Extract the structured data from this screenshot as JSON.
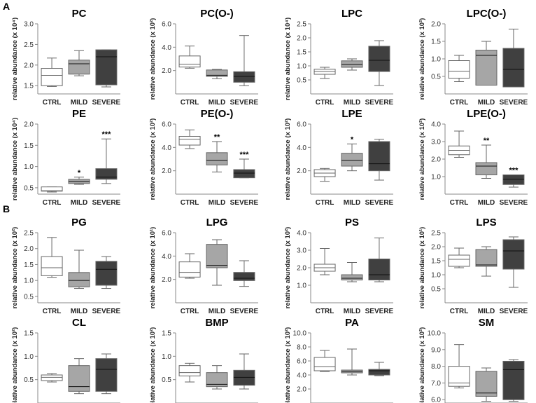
{
  "sections": {
    "a": "A",
    "b": "B"
  },
  "colors": {
    "CTRL": "#ffffff",
    "MILD": "#a6a6a6",
    "SEVERE": "#404040",
    "edge": "#666666",
    "axis": "#888888"
  },
  "chart_data": [
    {
      "type": "box",
      "title": "PC",
      "ylabel": "relative abundance (x 10⁴)",
      "categories": [
        "CTRL",
        "MILD",
        "SEVERE"
      ],
      "ylim": [
        1.3,
        3.0
      ],
      "yticks": [
        "1.5",
        "2.0",
        "2.5",
        "3.0"
      ],
      "boxes": [
        {
          "min": 1.48,
          "q1": 1.5,
          "median": 1.75,
          "q3": 1.92,
          "max": 2.17
        },
        {
          "min": 1.74,
          "q1": 1.78,
          "median": 2.03,
          "q3": 2.12,
          "max": 2.35
        },
        {
          "min": 1.47,
          "q1": 1.52,
          "median": 2.2,
          "q3": 2.37,
          "max": 2.37
        }
      ],
      "significance": [
        "",
        "",
        ""
      ]
    },
    {
      "type": "box",
      "title": "PC(O-)",
      "ylabel": "relative abundance (x 10²)",
      "categories": [
        "CTRL",
        "MILD",
        "SEVERE"
      ],
      "ylim": [
        0,
        6.0
      ],
      "yticks": [
        "2.0",
        "4.0",
        "6.0"
      ],
      "boxes": [
        {
          "min": 2.2,
          "q1": 2.3,
          "median": 2.55,
          "q3": 3.25,
          "max": 4.1
        },
        {
          "min": 1.3,
          "q1": 1.5,
          "median": 1.6,
          "q3": 2.05,
          "max": 2.1
        },
        {
          "min": 0.7,
          "q1": 1.0,
          "median": 1.5,
          "q3": 1.9,
          "max": 5.0
        }
      ],
      "significance": [
        "",
        "",
        ""
      ]
    },
    {
      "type": "box",
      "title": "LPC",
      "ylabel": "relative abundance (x 10⁴)",
      "categories": [
        "CTRL",
        "MILD",
        "SEVERE"
      ],
      "ylim": [
        0,
        2.5
      ],
      "yticks": [
        "0.5",
        "1.0",
        "1.5",
        "2.0",
        "2.5"
      ],
      "boxes": [
        {
          "min": 0.55,
          "q1": 0.7,
          "median": 0.8,
          "q3": 0.88,
          "max": 0.95
        },
        {
          "min": 0.85,
          "q1": 0.95,
          "median": 1.05,
          "q3": 1.18,
          "max": 1.25
        },
        {
          "min": 0.3,
          "q1": 0.8,
          "median": 1.2,
          "q3": 1.7,
          "max": 1.9
        }
      ],
      "significance": [
        "",
        "",
        ""
      ]
    },
    {
      "type": "box",
      "title": "LPC(O-)",
      "ylabel": "relative abundance (x 10²)",
      "categories": [
        "CTRL",
        "MILD",
        "SEVERE"
      ],
      "ylim": [
        0,
        2.0
      ],
      "yticks": [
        "0.5",
        "1.0",
        "1.5",
        "2.0"
      ],
      "boxes": [
        {
          "min": 0.35,
          "q1": 0.45,
          "median": 0.65,
          "q3": 0.95,
          "max": 1.1
        },
        {
          "min": 0.25,
          "q1": 0.25,
          "median": 1.1,
          "q3": 1.25,
          "max": 1.5
        },
        {
          "min": 0.2,
          "q1": 0.2,
          "median": 0.7,
          "q3": 1.3,
          "max": 1.85
        }
      ],
      "significance": [
        "",
        "",
        ""
      ]
    },
    {
      "type": "box",
      "title": "PE",
      "ylabel": "relative abundance (x 10⁴)",
      "categories": [
        "CTRL",
        "MILD",
        "SEVERE"
      ],
      "ylim": [
        0.35,
        2.0
      ],
      "yticks": [
        "0.5",
        "1.0",
        "1.5",
        "2.0"
      ],
      "boxes": [
        {
          "min": 0.4,
          "q1": 0.42,
          "median": 0.43,
          "q3": 0.52,
          "max": 0.52
        },
        {
          "min": 0.58,
          "q1": 0.6,
          "median": 0.65,
          "q3": 0.7,
          "max": 0.75
        },
        {
          "min": 0.6,
          "q1": 0.7,
          "median": 0.75,
          "q3": 0.95,
          "max": 1.65
        }
      ],
      "significance": [
        "",
        "*",
        "***"
      ]
    },
    {
      "type": "box",
      "title": "PE(O-)",
      "ylabel": "relative abundance (x 10²)",
      "categories": [
        "CTRL",
        "MILD",
        "SEVERE"
      ],
      "ylim": [
        0,
        6.0
      ],
      "yticks": [
        "2.0",
        "4.0",
        "6.0"
      ],
      "boxes": [
        {
          "min": 3.9,
          "q1": 4.2,
          "median": 4.7,
          "q3": 4.95,
          "max": 5.5
        },
        {
          "min": 1.9,
          "q1": 2.5,
          "median": 2.9,
          "q3": 3.55,
          "max": 4.5
        },
        {
          "min": 1.4,
          "q1": 1.4,
          "median": 1.8,
          "q3": 2.1,
          "max": 3.0
        }
      ],
      "significance": [
        "",
        "**",
        "***"
      ]
    },
    {
      "type": "box",
      "title": "LPE",
      "ylabel": "relative abundance (x 10²)",
      "categories": [
        "CTRL",
        "MILD",
        "SEVERE"
      ],
      "ylim": [
        0,
        6.0
      ],
      "yticks": [
        "2.0",
        "4.0",
        "6.0"
      ],
      "boxes": [
        {
          "min": 1.1,
          "q1": 1.5,
          "median": 1.8,
          "q3": 2.1,
          "max": 2.2
        },
        {
          "min": 2.0,
          "q1": 2.4,
          "median": 2.9,
          "q3": 3.5,
          "max": 4.3
        },
        {
          "min": 1.2,
          "q1": 2.0,
          "median": 2.6,
          "q3": 4.5,
          "max": 4.7
        }
      ],
      "significance": [
        "",
        "*",
        ""
      ]
    },
    {
      "type": "box",
      "title": "LPE(O-)",
      "ylabel": "relative abundance (x 10²)",
      "categories": [
        "CTRL",
        "MILD",
        "SEVERE"
      ],
      "ylim": [
        0,
        4.0
      ],
      "yticks": [
        "1.0",
        "2.0",
        "3.0",
        "4.0"
      ],
      "boxes": [
        {
          "min": 2.1,
          "q1": 2.25,
          "median": 2.5,
          "q3": 2.75,
          "max": 3.6
        },
        {
          "min": 0.9,
          "q1": 1.1,
          "median": 1.6,
          "q3": 1.8,
          "max": 2.8
        },
        {
          "min": 0.4,
          "q1": 0.55,
          "median": 0.85,
          "q3": 1.1,
          "max": 1.1
        }
      ],
      "significance": [
        "",
        "**",
        "***"
      ]
    },
    {
      "type": "box",
      "title": "PG",
      "ylabel": "relative abundance (x 10²)",
      "categories": [
        "CTRL",
        "MILD",
        "SEVERE"
      ],
      "ylim": [
        0.3,
        2.5
      ],
      "yticks": [
        "0.5",
        "1.0",
        "1.5",
        "2.0",
        "2.5"
      ],
      "boxes": [
        {
          "min": 1.1,
          "q1": 1.15,
          "median": 1.4,
          "q3": 1.75,
          "max": 2.35
        },
        {
          "min": 0.75,
          "q1": 0.8,
          "median": 1.0,
          "q3": 1.25,
          "max": 1.95
        },
        {
          "min": 0.75,
          "q1": 0.85,
          "median": 1.35,
          "q3": 1.6,
          "max": 1.75
        }
      ],
      "significance": [
        "",
        "",
        ""
      ]
    },
    {
      "type": "box",
      "title": "LPG",
      "ylabel": "relative abundance (x 10¹)",
      "categories": [
        "CTRL",
        "MILD",
        "SEVERE"
      ],
      "ylim": [
        0,
        6.0
      ],
      "yticks": [
        "2.0",
        "4.0",
        "6.0"
      ],
      "boxes": [
        {
          "min": 2.1,
          "q1": 2.2,
          "median": 2.6,
          "q3": 3.5,
          "max": 4.2
        },
        {
          "min": 1.5,
          "q1": 3.0,
          "median": 3.2,
          "q3": 5.0,
          "max": 5.4
        },
        {
          "min": 1.4,
          "q1": 1.9,
          "median": 2.1,
          "q3": 2.6,
          "max": 3.6
        }
      ],
      "significance": [
        "",
        "",
        ""
      ]
    },
    {
      "type": "box",
      "title": "PS",
      "ylabel": "relative abundance (x 10²)",
      "categories": [
        "CTRL",
        "MILD",
        "SEVERE"
      ],
      "ylim": [
        0,
        4.0
      ],
      "yticks": [
        "1.0",
        "2.0",
        "3.0",
        "4.0"
      ],
      "boxes": [
        {
          "min": 1.6,
          "q1": 1.8,
          "median": 2.0,
          "q3": 2.2,
          "max": 3.1
        },
        {
          "min": 1.2,
          "q1": 1.3,
          "median": 1.4,
          "q3": 1.6,
          "max": 2.3
        },
        {
          "min": 1.2,
          "q1": 1.3,
          "median": 1.6,
          "q3": 2.5,
          "max": 3.7
        }
      ],
      "significance": [
        "",
        "",
        ""
      ]
    },
    {
      "type": "box",
      "title": "LPS",
      "ylabel": "relative abundance (x 10¹)",
      "categories": [
        "CTRL",
        "MILD",
        "SEVERE"
      ],
      "ylim": [
        0,
        2.5
      ],
      "yticks": [
        "0.5",
        "1.0",
        "1.5",
        "2.0",
        "2.5"
      ],
      "boxes": [
        {
          "min": 1.25,
          "q1": 1.3,
          "median": 1.55,
          "q3": 1.7,
          "max": 1.95
        },
        {
          "min": 0.95,
          "q1": 1.3,
          "median": 1.35,
          "q3": 1.9,
          "max": 2.0
        },
        {
          "min": 0.55,
          "q1": 1.2,
          "median": 1.85,
          "q3": 2.25,
          "max": 2.35
        }
      ],
      "significance": [
        "",
        "",
        ""
      ]
    },
    {
      "type": "box",
      "title": "CL",
      "ylabel": "relative abundance (x 10²)",
      "categories": [
        "CTRL",
        "MILD",
        "SEVERE"
      ],
      "ylim": [
        0,
        1.5
      ],
      "yticks": [
        "0.5",
        "1.0",
        "1.5"
      ],
      "boxes": [
        {
          "min": 0.45,
          "q1": 0.48,
          "median": 0.55,
          "q3": 0.6,
          "max": 0.63
        },
        {
          "min": 0.2,
          "q1": 0.25,
          "median": 0.35,
          "q3": 0.8,
          "max": 0.95
        },
        {
          "min": 0.2,
          "q1": 0.25,
          "median": 0.72,
          "q3": 0.95,
          "max": 1.05
        }
      ],
      "significance": [
        "",
        "",
        ""
      ]
    },
    {
      "type": "box",
      "title": "BMP",
      "ylabel": "relative abundance (x 10²)",
      "categories": [
        "CTRL",
        "MILD",
        "SEVERE"
      ],
      "ylim": [
        0,
        1.5
      ],
      "yticks": [
        "0.5",
        "1.0",
        "1.5"
      ],
      "boxes": [
        {
          "min": 0.45,
          "q1": 0.58,
          "median": 0.65,
          "q3": 0.8,
          "max": 0.85
        },
        {
          "min": 0.3,
          "q1": 0.35,
          "median": 0.4,
          "q3": 0.65,
          "max": 0.8
        },
        {
          "min": 0.3,
          "q1": 0.38,
          "median": 0.55,
          "q3": 0.7,
          "max": 1.05
        }
      ],
      "significance": [
        "",
        "",
        ""
      ]
    },
    {
      "type": "box",
      "title": "PA",
      "ylabel": "relative abundance (x 10²)",
      "categories": [
        "CTRL",
        "MILD",
        "SEVERE"
      ],
      "ylim": [
        0,
        10.0
      ],
      "yticks": [
        "2.0",
        "4.0",
        "6.0",
        "8.0",
        "10.0"
      ],
      "boxes": [
        {
          "min": 4.5,
          "q1": 4.6,
          "median": 5.2,
          "q3": 6.5,
          "max": 7.5
        },
        {
          "min": 4.0,
          "q1": 4.3,
          "median": 4.5,
          "q3": 4.7,
          "max": 7.7
        },
        {
          "min": 3.9,
          "q1": 4.0,
          "median": 4.6,
          "q3": 4.8,
          "max": 5.8
        }
      ],
      "significance": [
        "",
        "",
        ""
      ]
    },
    {
      "type": "box",
      "title": "SM",
      "ylabel": "relative abundance (x 10²)",
      "categories": [
        "CTRL",
        "MILD",
        "SEVERE"
      ],
      "ylim": [
        5.8,
        10.0
      ],
      "yticks": [
        "6.0",
        "7.0",
        "8.0",
        "9.0",
        "10.0"
      ],
      "boxes": [
        {
          "min": 6.7,
          "q1": 6.8,
          "median": 7.0,
          "q3": 8.0,
          "max": 9.3
        },
        {
          "min": 5.9,
          "q1": 6.2,
          "median": 6.4,
          "q3": 7.7,
          "max": 7.9
        },
        {
          "min": 5.9,
          "q1": 6.0,
          "median": 7.8,
          "q3": 8.3,
          "max": 8.4
        }
      ],
      "significance": [
        "",
        "",
        ""
      ]
    }
  ]
}
